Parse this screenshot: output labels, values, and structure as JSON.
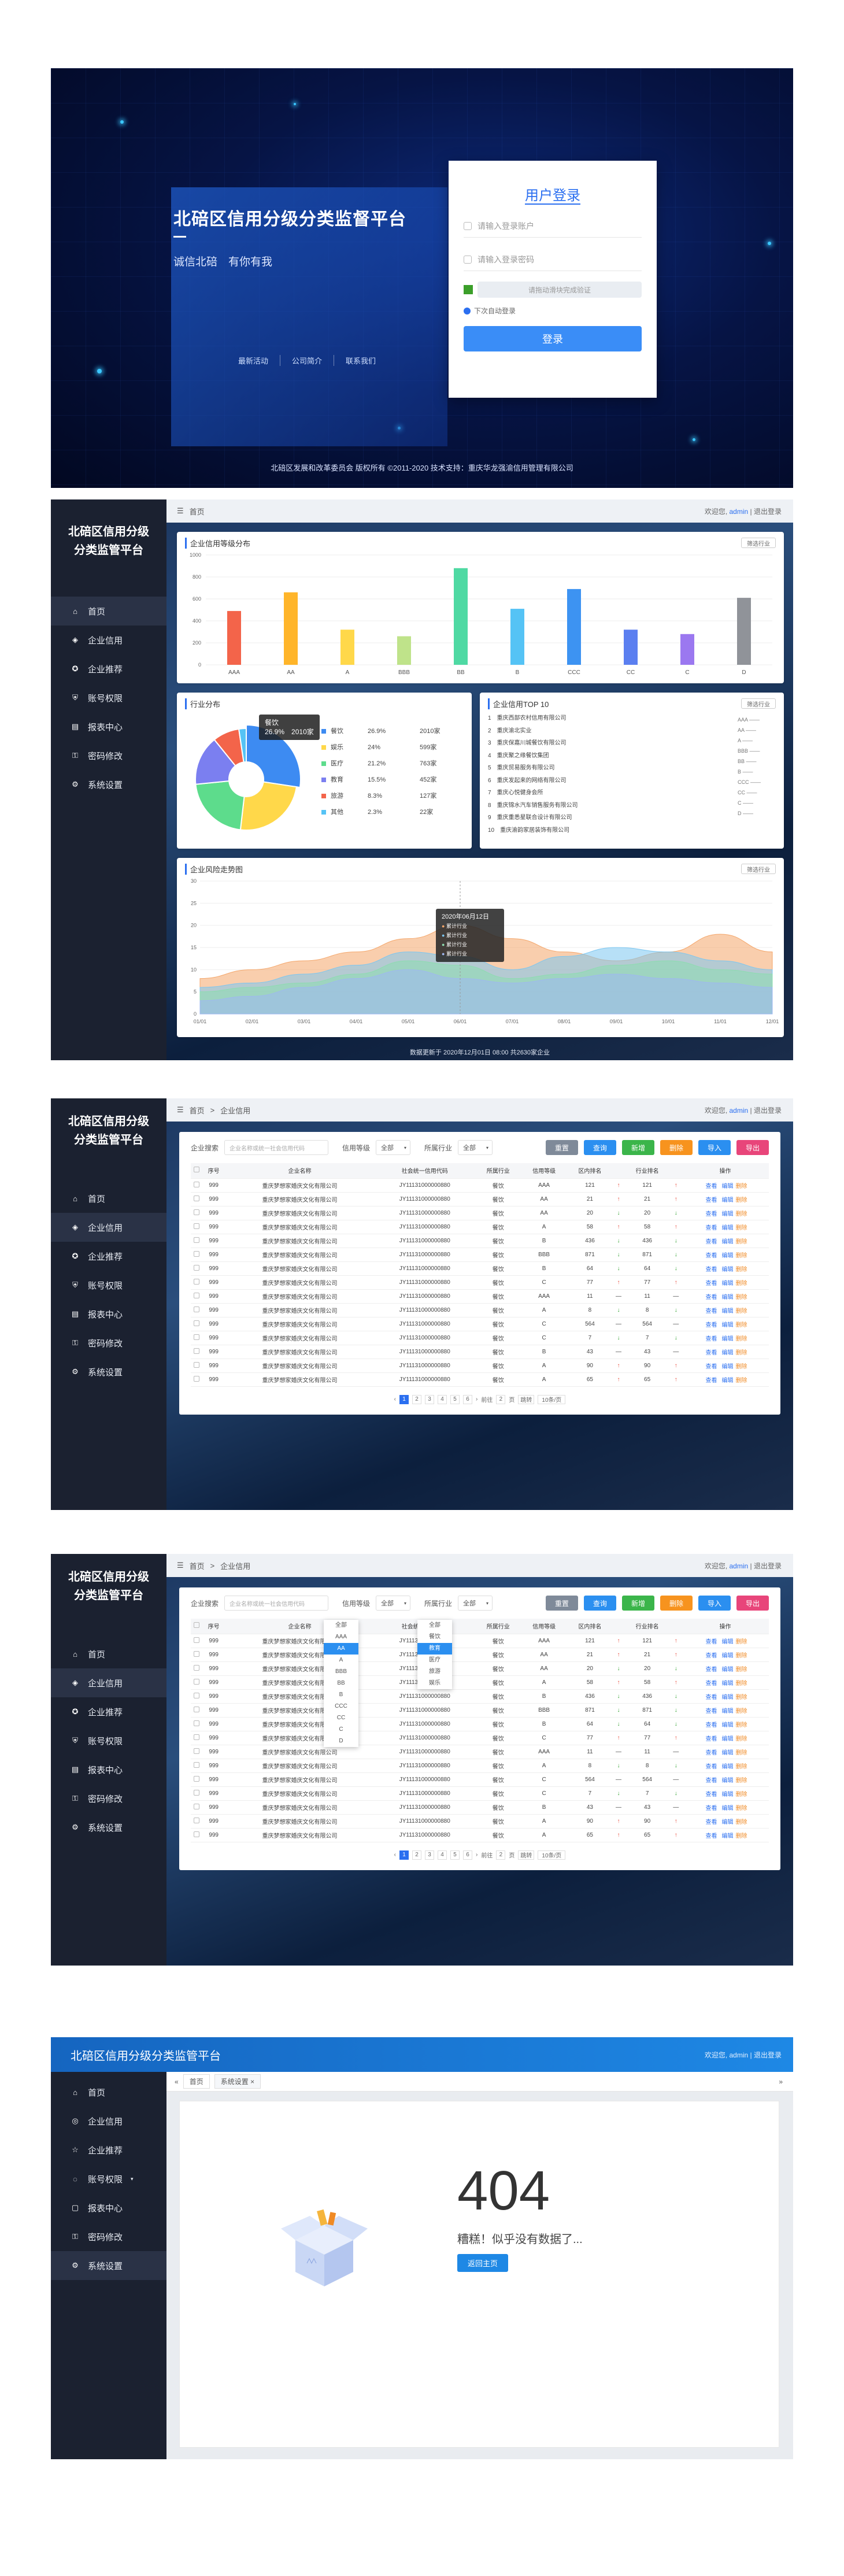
{
  "login": {
    "title": "北碚区信用分级分类监督平台",
    "slogan": "诚信北碚　有你有我",
    "links": [
      "最新活动",
      "公司简介",
      "联系我们"
    ],
    "card_title": "用户登录",
    "user_placeholder": "请输入登录账户",
    "pwd_placeholder": "请输入登录密码",
    "captcha": "请拖动滑块完成验证",
    "remember": "下次自动登录",
    "login_btn": "登录",
    "footer": "北碚区发展和改革委员会 版权所有 ©2011-2020  技术支持：重庆华龙强渝信用管理有限公司"
  },
  "app": {
    "logo": "北碚区信用分级分类监管平台",
    "menu": [
      "首页",
      "企业信用",
      "企业推荐",
      "账号权限",
      "报表中心",
      "密码修改",
      "系统设置"
    ],
    "welcome": "欢迎您,",
    "user": "admin",
    "logout": "退出登录",
    "home": "首页",
    "crumb2": "企业信用"
  },
  "dash": {
    "p1_title": "企业信用等级分布",
    "p1_select": "筛选行业",
    "p2_title": "行业分布",
    "pie_tip": [
      "餐饮",
      "26.9%",
      "2010家"
    ],
    "p3_title": "企业信用TOP 10",
    "top10": [
      "重庆西部农村信用有限公司",
      "重庆渝北实业",
      "重庆保嘉川城餐饮有限公司",
      "重庆聚之缘餐饮集团",
      "重庆贸易服务有限公司",
      "重庆发起来的网络有限公司",
      "重庆心悦健身会所",
      "重庆锦水汽车销售服务有限公司",
      "重庆重悉星联合设计有限公司",
      "重庆渝韵家居装饰有限公司"
    ],
    "rank_legend": [
      "AAA",
      "AA",
      "A",
      "BBB",
      "BB",
      "B",
      "CCC",
      "CC",
      "C",
      "D"
    ],
    "p4_title": "企业风险走势图",
    "tip_date": "2020年06月12日",
    "tip_rows": [
      "累计行业",
      "累计行业",
      "累计行业",
      "累计行业"
    ],
    "statusbar": "数据更新于 2020年12月01日 08:00  共2630家企业"
  },
  "chart_data": [
    {
      "type": "bar",
      "title": "企业信用等级分布",
      "categories": [
        "AAA",
        "AA",
        "A",
        "BBB",
        "BB",
        "B",
        "CCC",
        "CC",
        "C",
        "D"
      ],
      "values": [
        490,
        660,
        320,
        260,
        880,
        510,
        690,
        320,
        280,
        610
      ],
      "ylim": [
        0,
        1000
      ],
      "yticks": [
        0,
        200,
        400,
        600,
        800,
        1000
      ],
      "colors": [
        "#f3644a",
        "#ffb52a",
        "#ffd84a",
        "#bfe38a",
        "#4fd9a3",
        "#55c3f5",
        "#3d93f2",
        "#5b7ff0",
        "#9b78f0",
        "#909399"
      ]
    },
    {
      "type": "pie",
      "title": "行业分布",
      "categories": [
        "餐饮",
        "娱乐",
        "医疗",
        "教育",
        "旅游",
        "其他"
      ],
      "values": [
        26.9,
        24,
        21.2,
        15.5,
        8.3,
        2.3
      ],
      "counts": [
        "2010家",
        "599家",
        "763家",
        "452家",
        "127家",
        "22家"
      ],
      "colors": [
        "#3d8bf2",
        "#ffd84a",
        "#5ddc8c",
        "#7b7ff0",
        "#f3644a",
        "#55c3f5"
      ]
    },
    {
      "type": "area",
      "title": "企业风险走势图",
      "categories": [
        "01/01",
        "02/01",
        "03/01",
        "04/01",
        "05/01",
        "06/01",
        "07/01",
        "08/01",
        "09/01",
        "10/01",
        "11/01",
        "12/01"
      ],
      "ylim": [
        0,
        30
      ],
      "yticks": [
        0,
        5,
        10,
        15,
        20,
        25,
        30
      ],
      "series": [
        {
          "values": [
            8,
            10,
            12,
            14,
            17,
            20,
            17,
            14,
            12,
            14,
            18,
            14
          ],
          "color": "#f4a66a"
        },
        {
          "values": [
            6,
            7,
            9,
            11,
            14,
            13,
            10,
            13,
            15,
            14,
            12,
            10
          ],
          "color": "#7cc6f0"
        },
        {
          "values": [
            5,
            6,
            7,
            9,
            12,
            11,
            8,
            9,
            11,
            12,
            10,
            9
          ],
          "color": "#8ddcb0"
        },
        {
          "values": [
            3,
            4,
            6,
            8,
            10,
            8,
            7,
            8,
            9,
            8,
            7,
            6
          ],
          "color": "#9fb8f0"
        }
      ]
    }
  ],
  "table": {
    "search_label": "企业搜索",
    "search_placeholder": "企业名称或统一社会信用代码",
    "rank_label": "信用等级",
    "rank_value": "全部",
    "ind_label": "所属行业",
    "ind_value": "全部",
    "buttons": [
      "重置",
      "查询",
      "新增",
      "删除",
      "导入",
      "导出"
    ],
    "headers": [
      "",
      "序号",
      "企业名称",
      "社会统一信用代码",
      "所属行业",
      "信用等级",
      "区内排名",
      "",
      "行业排名",
      "",
      "操作"
    ],
    "row_name": "重庆梦想家婚庆文化有限公司",
    "row_code": "JY11131000000880",
    "row_no": "999",
    "rows": [
      [
        "餐饮",
        "AAA",
        "121",
        "up",
        "121",
        "up"
      ],
      [
        "餐饮",
        "AA",
        "21",
        "up",
        "21",
        "up"
      ],
      [
        "餐饮",
        "AA",
        "20",
        "dn",
        "20",
        "dn"
      ],
      [
        "餐饮",
        "A",
        "58",
        "up",
        "58",
        "up"
      ],
      [
        "餐饮",
        "B",
        "436",
        "dn",
        "436",
        "dn"
      ],
      [
        "餐饮",
        "BBB",
        "871",
        "dn",
        "871",
        "dn"
      ],
      [
        "餐饮",
        "B",
        "64",
        "dn",
        "64",
        "dn"
      ],
      [
        "餐饮",
        "C",
        "77",
        "up",
        "77",
        "up"
      ],
      [
        "餐饮",
        "AAA",
        "11",
        "",
        "11",
        ""
      ],
      [
        "餐饮",
        "A",
        "8",
        "dn",
        "8",
        "dn"
      ],
      [
        "餐饮",
        "C",
        "564",
        "",
        "564",
        ""
      ],
      [
        "餐饮",
        "C",
        "7",
        "dn",
        "7",
        "dn"
      ],
      [
        "餐饮",
        "B",
        "43",
        "",
        "43",
        ""
      ],
      [
        "餐饮",
        "A",
        "90",
        "up",
        "90",
        "up"
      ],
      [
        "餐饮",
        "A",
        "65",
        "up",
        "65",
        "up"
      ]
    ],
    "ops": [
      "查看",
      "编辑",
      "删除"
    ],
    "pager": [
      "1",
      "2",
      "3",
      "4",
      "5",
      "6"
    ],
    "pager_text": [
      "前往",
      "页",
      "跳转",
      "10条/页"
    ],
    "rank_options": [
      "全部",
      "AAA",
      "AA",
      "A",
      "BBB",
      "BB",
      "B",
      "CCC",
      "CC",
      "C",
      "D"
    ],
    "ind_options": [
      "全部",
      "餐饮",
      "教育",
      "医疗",
      "旅游",
      "娱乐"
    ]
  },
  "page404": {
    "header": "北碚区信用分级分类监管平台",
    "tabs": [
      "首页",
      "系统设置"
    ],
    "code": "404",
    "msg": "糟糕！似乎没有数据了...",
    "btn": "返回主页"
  }
}
